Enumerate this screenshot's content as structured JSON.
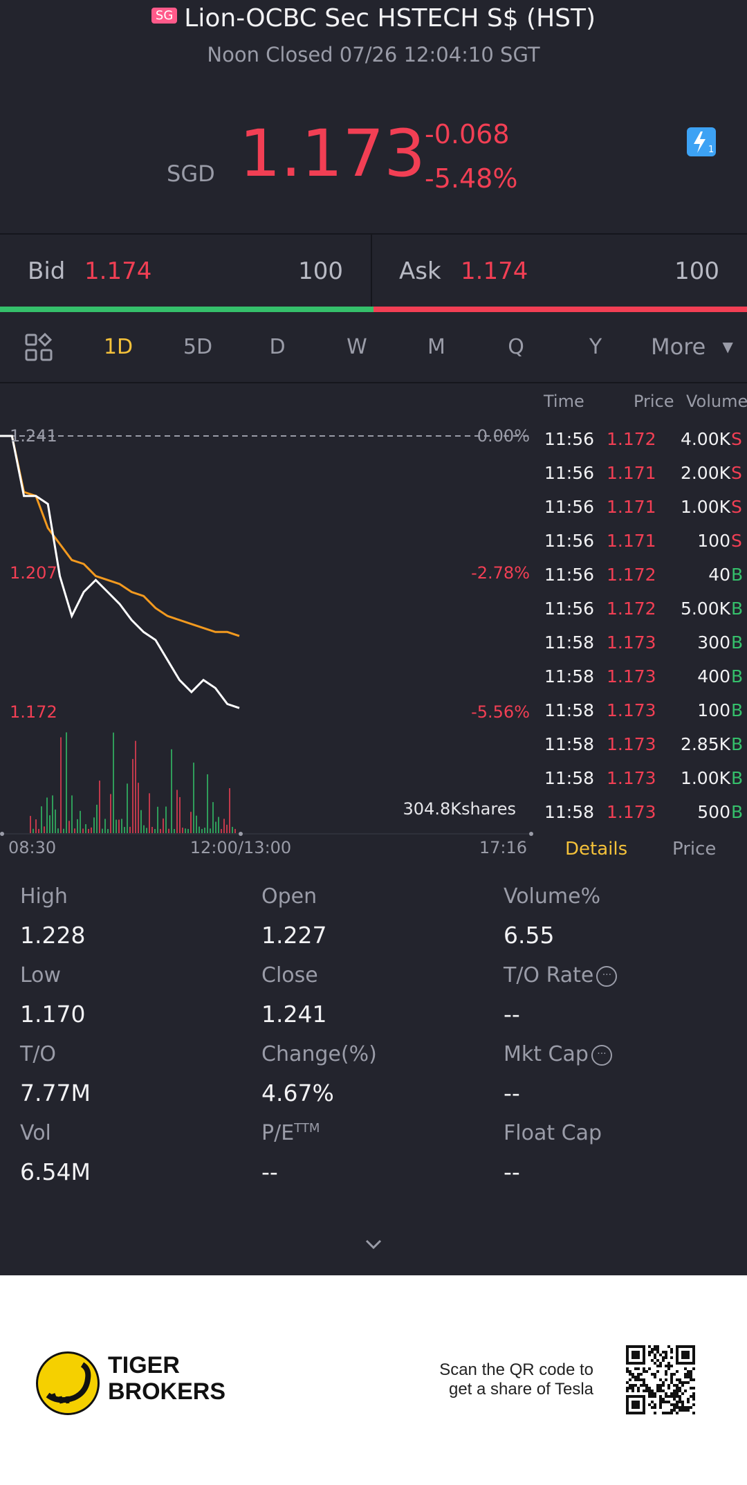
{
  "header": {
    "market_badge": "SG",
    "title": "Lion-OCBC Sec HSTECH S$ (HST)",
    "status": "Noon Closed 07/26 12:04:10 SGT"
  },
  "quote": {
    "currency": "SGD",
    "price": "1.173",
    "change": "-0.068",
    "change_pct": "-5.48%",
    "flash_icon": "lightning-icon",
    "flash_badge": "1"
  },
  "orderbook": {
    "bid_label": "Bid",
    "bid_price": "1.174",
    "bid_size": "100",
    "ask_label": "Ask",
    "ask_price": "1.174",
    "ask_size": "100"
  },
  "period_tabs": [
    {
      "label": "1D",
      "active": true
    },
    {
      "label": "5D",
      "active": false
    },
    {
      "label": "D",
      "active": false
    },
    {
      "label": "W",
      "active": false
    },
    {
      "label": "M",
      "active": false
    },
    {
      "label": "Q",
      "active": false
    },
    {
      "label": "Y",
      "active": false
    }
  ],
  "more_label": "More",
  "chart": {
    "left_labels": [
      "1.241",
      "1.207",
      "1.172"
    ],
    "right_labels": [
      "0.00%",
      "-2.78%",
      "-5.56%"
    ],
    "x_labels": [
      "08:30",
      "12:00/13:00",
      "17:16"
    ],
    "volume_label": "304.8Kshares"
  },
  "chart_data": {
    "type": "line",
    "ylim": [
      1.172,
      1.241
    ],
    "series": [
      {
        "values": [
          1.241,
          1.241,
          1.226,
          1.226,
          1.224,
          1.206,
          1.196,
          1.202,
          1.205,
          1.202,
          1.199,
          1.195,
          1.192,
          1.19,
          1.185,
          1.18,
          1.177,
          1.18,
          1.178,
          1.174,
          1.173
        ]
      },
      {
        "values": [
          1.241,
          1.241,
          1.227,
          1.226,
          1.218,
          1.214,
          1.21,
          1.209,
          1.206,
          1.205,
          1.204,
          1.202,
          1.201,
          1.198,
          1.196,
          1.195,
          1.194,
          1.193,
          1.192,
          1.192,
          1.191
        ]
      }
    ]
  },
  "time_sales": {
    "headers": [
      "Time",
      "Price",
      "Volume"
    ],
    "rows": [
      {
        "time": "11:56",
        "price": "1.172",
        "vol": "4.00K",
        "side": "S"
      },
      {
        "time": "11:56",
        "price": "1.171",
        "vol": "2.00K",
        "side": "S"
      },
      {
        "time": "11:56",
        "price": "1.171",
        "vol": "1.00K",
        "side": "S"
      },
      {
        "time": "11:56",
        "price": "1.171",
        "vol": "100",
        "side": "S"
      },
      {
        "time": "11:56",
        "price": "1.172",
        "vol": "40",
        "side": "B"
      },
      {
        "time": "11:56",
        "price": "1.172",
        "vol": "5.00K",
        "side": "B"
      },
      {
        "time": "11:58",
        "price": "1.173",
        "vol": "300",
        "side": "B"
      },
      {
        "time": "11:58",
        "price": "1.173",
        "vol": "400",
        "side": "B"
      },
      {
        "time": "11:58",
        "price": "1.173",
        "vol": "100",
        "side": "B"
      },
      {
        "time": "11:58",
        "price": "1.173",
        "vol": "2.85K",
        "side": "B"
      },
      {
        "time": "11:58",
        "price": "1.173",
        "vol": "1.00K",
        "side": "B"
      },
      {
        "time": "11:58",
        "price": "1.173",
        "vol": "500",
        "side": "B"
      }
    ],
    "tab_details": "Details",
    "tab_price": "Price"
  },
  "stats": [
    {
      "label": "High",
      "value": "1.228"
    },
    {
      "label": "Open",
      "value": "1.227"
    },
    {
      "label": "Volume%",
      "value": "6.55"
    },
    {
      "label": "Low",
      "value": "1.170"
    },
    {
      "label": "Close",
      "value": "1.241"
    },
    {
      "label": "T/O Rate",
      "value": "--"
    },
    {
      "label": "T/O",
      "value": "7.77M"
    },
    {
      "label": "Change(%)",
      "value": "4.67%"
    },
    {
      "label": "Mkt Cap",
      "value": "--"
    },
    {
      "label": "Vol",
      "value": "6.54M"
    },
    {
      "label": "P/E",
      "value": "--"
    },
    {
      "label": "Float Cap",
      "value": "--"
    }
  ],
  "pe_superscript": "TTM",
  "footer": {
    "brand_line1": "TIGER",
    "brand_line2": "BROKERS",
    "scan_line1": "Scan the QR code to",
    "scan_line2": "get a share of Tesla"
  },
  "colors": {
    "up": "#35c06b",
    "down": "#f23f54",
    "accent": "#f5c23a",
    "bg": "#23242d"
  }
}
